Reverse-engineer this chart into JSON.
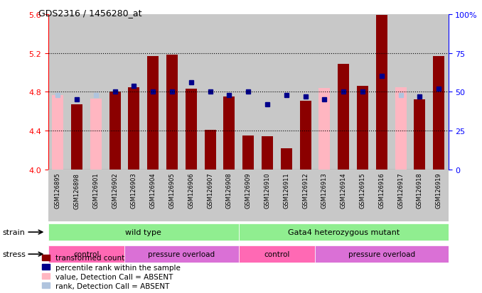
{
  "title": "GDS2316 / 1456280_at",
  "samples": [
    "GSM126895",
    "GSM126898",
    "GSM126901",
    "GSM126902",
    "GSM126903",
    "GSM126904",
    "GSM126905",
    "GSM126906",
    "GSM126907",
    "GSM126908",
    "GSM126909",
    "GSM126910",
    "GSM126911",
    "GSM126912",
    "GSM126913",
    "GSM126914",
    "GSM126915",
    "GSM126916",
    "GSM126917",
    "GSM126918",
    "GSM126919"
  ],
  "red_values": [
    4.77,
    4.67,
    4.73,
    4.8,
    4.85,
    5.17,
    5.18,
    4.83,
    4.41,
    4.75,
    4.35,
    4.34,
    4.22,
    4.71,
    4.84,
    5.09,
    4.86,
    5.59,
    4.85,
    4.72,
    5.17
  ],
  "blue_pct": [
    48,
    45,
    48,
    50,
    54,
    50,
    50,
    56,
    50,
    48,
    50,
    42,
    48,
    47,
    45,
    50,
    50,
    60,
    48,
    47,
    52
  ],
  "absent_red": [
    true,
    false,
    true,
    false,
    false,
    false,
    false,
    false,
    false,
    false,
    false,
    false,
    false,
    false,
    true,
    false,
    false,
    false,
    true,
    false,
    false
  ],
  "absent_blue": [
    true,
    false,
    true,
    false,
    false,
    false,
    false,
    false,
    false,
    false,
    false,
    false,
    false,
    false,
    false,
    false,
    false,
    false,
    true,
    false,
    false
  ],
  "ylim_left": [
    4.0,
    5.6
  ],
  "yticks_left": [
    4.0,
    4.4,
    4.8,
    5.2,
    5.6
  ],
  "yticks_right": [
    0,
    25,
    50,
    75,
    100
  ],
  "ytick_right_labels": [
    "0",
    "25",
    "50",
    "75",
    "100%"
  ],
  "grid_lines": [
    4.4,
    4.8,
    5.2
  ],
  "bar_width": 0.6,
  "red_color": "#8B0000",
  "blue_color": "#00008B",
  "absent_red_color": "#FFB6C1",
  "absent_blue_color": "#B0C4DE",
  "col_bg_color": "#C8C8C8",
  "strain_groups": [
    {
      "label": "wild type",
      "start": 0,
      "end": 10,
      "color": "#90EE90"
    },
    {
      "label": "Gata4 heterozygous mutant",
      "start": 10,
      "end": 21,
      "color": "#90EE90"
    }
  ],
  "stress_groups": [
    {
      "label": "control",
      "start": 0,
      "end": 4,
      "color": "#FF69B4"
    },
    {
      "label": "pressure overload",
      "start": 4,
      "end": 10,
      "color": "#DA70D6"
    },
    {
      "label": "control",
      "start": 10,
      "end": 14,
      "color": "#FF69B4"
    },
    {
      "label": "pressure overload",
      "start": 14,
      "end": 21,
      "color": "#DA70D6"
    }
  ],
  "legend_labels": [
    "transformed count",
    "percentile rank within the sample",
    "value, Detection Call = ABSENT",
    "rank, Detection Call = ABSENT"
  ],
  "legend_colors": [
    "#8B0000",
    "#00008B",
    "#FFB6C1",
    "#B0C4DE"
  ]
}
